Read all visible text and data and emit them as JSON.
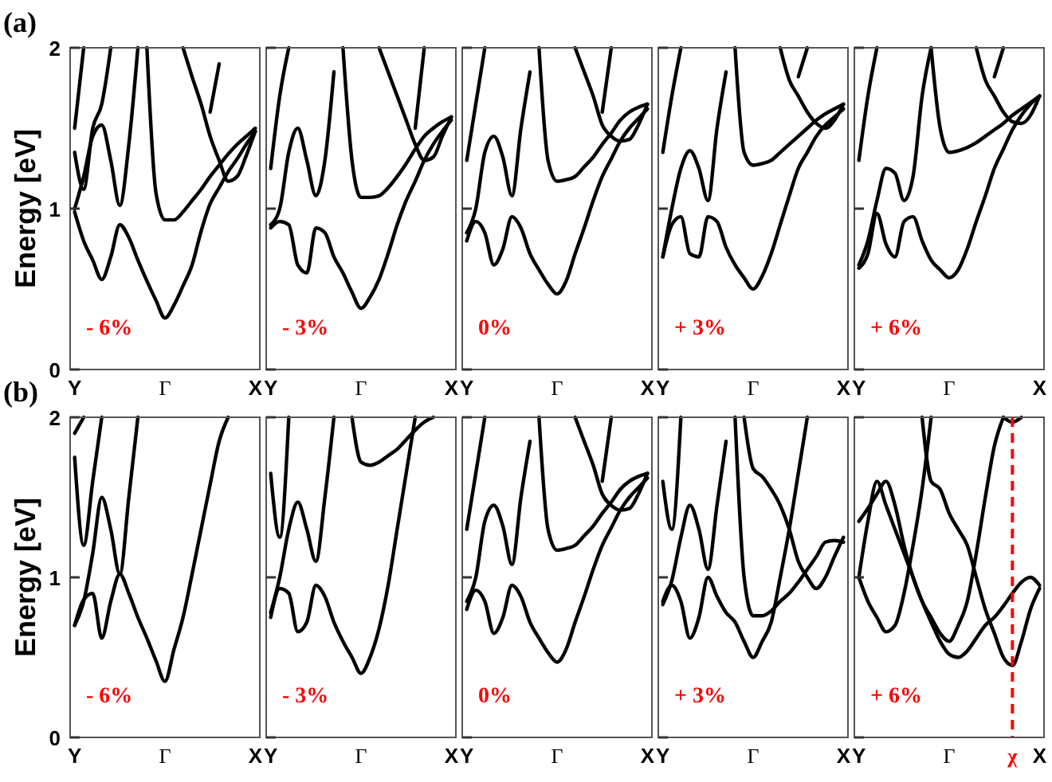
{
  "chart_data": [
    {
      "type": "line",
      "ylabel": "Energy [eV]",
      "annotations": [
        "(a)",
        "- 6%"
      ],
      "categories": [
        "Y",
        null,
        null,
        null,
        null,
        null,
        null,
        null,
        null,
        null,
        "Γ",
        null,
        null,
        null,
        null,
        null,
        null,
        null,
        null,
        null,
        "X"
      ],
      "ylim": [
        0,
        2
      ],
      "yticks": [
        0,
        1,
        2
      ],
      "series": [
        {
          "color": "#000000",
          "values": [
            0.98,
            0.8,
            0.68,
            0.56,
            0.7,
            0.9,
            0.82,
            0.68,
            0.55,
            0.43,
            0.32,
            0.4,
            0.52,
            0.65,
            0.86,
            1.03,
            1.13,
            1.23,
            1.31,
            1.4,
            1.48
          ]
        },
        {
          "color": "#000000",
          "values": [
            1.0,
            1.2,
            1.45,
            1.52,
            1.3,
            1.02,
            1.4,
            2.0,
            null,
            null,
            null,
            null,
            null,
            null,
            null,
            null,
            null,
            null,
            null,
            null,
            null
          ]
        },
        {
          "color": "#000000",
          "values": [
            null,
            null,
            null,
            null,
            null,
            null,
            null,
            null,
            2.0,
            1.1,
            0.93,
            0.93,
            0.98,
            1.05,
            1.12,
            1.2,
            1.27,
            1.34,
            1.4,
            1.45,
            1.5
          ]
        },
        {
          "color": "#000000",
          "values": [
            null,
            null,
            null,
            null,
            null,
            null,
            null,
            null,
            null,
            null,
            null,
            null,
            2.0,
            1.82,
            1.65,
            1.45,
            1.3,
            1.17,
            1.2,
            1.33,
            1.48
          ]
        },
        {
          "color": "#000000",
          "values": [
            null,
            null,
            null,
            null,
            null,
            null,
            null,
            null,
            null,
            null,
            null,
            null,
            null,
            null,
            null,
            1.6,
            1.9,
            null,
            null,
            null,
            null
          ]
        },
        {
          "color": "#000000",
          "values": [
            1.35,
            1.12,
            1.5,
            1.65,
            2.0,
            null,
            null,
            null,
            null,
            null,
            null,
            null,
            null,
            null,
            null,
            null,
            null,
            null,
            null,
            null,
            null
          ]
        },
        {
          "color": "#000000",
          "values": [
            1.5,
            2.0,
            null,
            null,
            null,
            null,
            null,
            null,
            null,
            null,
            null,
            null,
            null,
            null,
            null,
            null,
            null,
            null,
            null,
            null,
            null
          ]
        }
      ]
    },
    {
      "type": "line",
      "annotations": [
        "- 3%"
      ],
      "tick_labels": "x",
      "categories": [
        "Y",
        null,
        null,
        null,
        null,
        null,
        null,
        null,
        null,
        null,
        "Γ",
        null,
        null,
        null,
        null,
        null,
        null,
        null,
        null,
        null,
        "X"
      ],
      "ylim": [
        0,
        2
      ],
      "yticks": [
        0,
        1,
        2
      ],
      "series": [
        {
          "color": "#000000",
          "values": [
            0.88,
            0.92,
            0.9,
            0.65,
            0.6,
            0.88,
            0.85,
            0.7,
            0.6,
            0.48,
            0.38,
            0.45,
            0.56,
            0.72,
            0.9,
            1.05,
            1.17,
            1.3,
            1.4,
            1.48,
            1.55
          ]
        },
        {
          "color": "#000000",
          "values": [
            0.9,
            1.0,
            1.35,
            1.5,
            1.3,
            1.08,
            1.3,
            1.85,
            null,
            null,
            null,
            null,
            null,
            null,
            null,
            null,
            null,
            null,
            null,
            null,
            null
          ]
        },
        {
          "color": "#000000",
          "values": [
            null,
            null,
            null,
            null,
            null,
            null,
            null,
            null,
            2.0,
            1.3,
            1.07,
            1.07,
            1.08,
            1.13,
            1.2,
            1.28,
            1.37,
            1.45,
            1.5,
            1.54,
            1.57
          ]
        },
        {
          "color": "#000000",
          "values": [
            null,
            null,
            null,
            null,
            null,
            null,
            null,
            null,
            null,
            null,
            null,
            null,
            2.0,
            1.85,
            1.7,
            1.55,
            1.4,
            1.3,
            1.32,
            1.45,
            1.57
          ]
        },
        {
          "color": "#000000",
          "values": [
            null,
            null,
            null,
            null,
            null,
            null,
            null,
            null,
            null,
            null,
            null,
            null,
            null,
            null,
            null,
            null,
            1.5,
            2.0,
            null,
            null,
            null
          ]
        },
        {
          "color": "#000000",
          "values": [
            1.25,
            1.7,
            2.0,
            null,
            null,
            null,
            null,
            null,
            null,
            null,
            null,
            null,
            null,
            null,
            null,
            null,
            null,
            null,
            null,
            null,
            null
          ]
        }
      ]
    },
    {
      "type": "line",
      "annotations": [
        "0%"
      ],
      "tick_labels": "x",
      "categories": [
        "Y",
        null,
        null,
        null,
        null,
        null,
        null,
        null,
        null,
        null,
        "Γ",
        null,
        null,
        null,
        null,
        null,
        null,
        null,
        null,
        null,
        "X"
      ],
      "ylim": [
        0,
        2
      ],
      "yticks": [
        0,
        1,
        2
      ],
      "series": [
        {
          "color": "#000000",
          "values": [
            0.8,
            0.92,
            0.85,
            0.65,
            0.75,
            0.95,
            0.88,
            0.72,
            0.62,
            0.53,
            0.47,
            0.55,
            0.72,
            0.88,
            1.05,
            1.2,
            1.31,
            1.42,
            1.5,
            1.56,
            1.62
          ]
        },
        {
          "color": "#000000",
          "values": [
            0.85,
            1.0,
            1.35,
            1.45,
            1.32,
            1.08,
            1.5,
            1.85,
            null,
            null,
            null,
            null,
            null,
            null,
            null,
            null,
            null,
            null,
            null,
            null,
            null
          ]
        },
        {
          "color": "#000000",
          "values": [
            null,
            null,
            null,
            null,
            null,
            null,
            null,
            null,
            2.0,
            1.3,
            1.17,
            1.18,
            1.2,
            1.26,
            1.32,
            1.4,
            1.47,
            1.55,
            1.6,
            1.63,
            1.65
          ]
        },
        {
          "color": "#000000",
          "values": [
            null,
            null,
            null,
            null,
            null,
            null,
            null,
            null,
            null,
            null,
            null,
            null,
            2.0,
            1.85,
            1.7,
            1.52,
            1.45,
            1.42,
            1.43,
            1.52,
            1.65
          ]
        },
        {
          "color": "#000000",
          "values": [
            null,
            null,
            null,
            null,
            null,
            null,
            null,
            null,
            null,
            null,
            null,
            null,
            null,
            null,
            null,
            1.6,
            2.0,
            null,
            null,
            null,
            null
          ]
        },
        {
          "color": "#000000",
          "values": [
            1.3,
            1.65,
            2.0,
            null,
            null,
            null,
            null,
            null,
            null,
            null,
            null,
            null,
            null,
            null,
            null,
            null,
            null,
            null,
            null,
            null,
            null
          ]
        }
      ]
    },
    {
      "type": "line",
      "annotations": [
        "+ 3%"
      ],
      "tick_labels": "x",
      "categories": [
        "Y",
        null,
        null,
        null,
        null,
        null,
        null,
        null,
        null,
        null,
        "Γ",
        null,
        null,
        null,
        null,
        null,
        null,
        null,
        null,
        null,
        "X"
      ],
      "ylim": [
        0,
        2
      ],
      "yticks": [
        0,
        1,
        2
      ],
      "series": [
        {
          "color": "#000000",
          "values": [
            0.7,
            0.9,
            0.95,
            0.72,
            0.7,
            0.95,
            0.92,
            0.76,
            0.65,
            0.57,
            0.5,
            0.58,
            0.72,
            0.9,
            1.08,
            1.25,
            1.35,
            1.45,
            1.52,
            1.57,
            1.62
          ]
        },
        {
          "color": "#000000",
          "values": [
            0.7,
            1.0,
            1.25,
            1.36,
            1.25,
            1.05,
            1.5,
            1.85,
            null,
            null,
            null,
            null,
            null,
            null,
            null,
            null,
            null,
            null,
            null,
            null,
            null
          ]
        },
        {
          "color": "#000000",
          "values": [
            null,
            null,
            null,
            null,
            null,
            null,
            null,
            null,
            2.0,
            1.35,
            1.27,
            1.28,
            1.3,
            1.35,
            1.4,
            1.45,
            1.5,
            1.55,
            1.59,
            1.62,
            1.65
          ]
        },
        {
          "color": "#000000",
          "values": [
            null,
            null,
            null,
            null,
            null,
            null,
            null,
            null,
            null,
            null,
            null,
            null,
            null,
            2.0,
            1.8,
            1.7,
            1.6,
            1.53,
            1.5,
            1.55,
            1.65
          ]
        },
        {
          "color": "#000000",
          "values": [
            null,
            null,
            null,
            null,
            null,
            null,
            null,
            null,
            null,
            null,
            null,
            null,
            null,
            null,
            null,
            1.82,
            2.0,
            null,
            null,
            null,
            null
          ]
        },
        {
          "color": "#000000",
          "values": [
            1.35,
            1.7,
            2.0,
            null,
            null,
            null,
            null,
            null,
            null,
            null,
            null,
            null,
            null,
            null,
            null,
            null,
            null,
            null,
            null,
            null,
            null
          ]
        }
      ]
    },
    {
      "type": "line",
      "annotations": [
        "+ 6%"
      ],
      "tick_labels": "x",
      "categories": [
        "Y",
        null,
        null,
        null,
        null,
        null,
        null,
        null,
        null,
        null,
        "Γ",
        null,
        null,
        null,
        null,
        null,
        null,
        null,
        null,
        null,
        "X"
      ],
      "ylim": [
        0,
        2
      ],
      "yticks": [
        0,
        1,
        2
      ],
      "series": [
        {
          "color": "#000000",
          "values": [
            0.63,
            0.72,
            0.97,
            0.78,
            0.7,
            0.92,
            0.95,
            0.8,
            0.68,
            0.62,
            0.57,
            0.62,
            0.75,
            0.92,
            1.08,
            1.25,
            1.37,
            1.49,
            1.58,
            1.65,
            1.7
          ]
        },
        {
          "color": "#000000",
          "values": [
            0.65,
            0.8,
            1.05,
            1.25,
            1.22,
            1.05,
            1.2,
            1.7,
            2.0,
            null,
            null,
            null,
            null,
            null,
            null,
            null,
            null,
            null,
            null,
            null,
            null
          ]
        },
        {
          "color": "#000000",
          "values": [
            null,
            null,
            null,
            null,
            null,
            null,
            null,
            null,
            2.0,
            1.5,
            1.35,
            1.36,
            1.38,
            1.41,
            1.45,
            1.49,
            1.53,
            1.58,
            1.62,
            1.66,
            1.7
          ]
        },
        {
          "color": "#000000",
          "values": [
            null,
            null,
            null,
            null,
            null,
            null,
            null,
            null,
            null,
            null,
            null,
            null,
            null,
            2.0,
            1.8,
            1.7,
            1.6,
            1.54,
            1.53,
            1.58,
            1.7
          ]
        },
        {
          "color": "#000000",
          "values": [
            null,
            null,
            null,
            null,
            null,
            null,
            null,
            null,
            null,
            null,
            null,
            null,
            null,
            null,
            null,
            1.82,
            2.0,
            null,
            null,
            null,
            null
          ]
        },
        {
          "color": "#000000",
          "values": [
            1.3,
            1.7,
            2.0,
            null,
            null,
            null,
            null,
            null,
            null,
            null,
            null,
            null,
            null,
            null,
            null,
            null,
            null,
            null,
            null,
            null,
            null
          ]
        }
      ]
    },
    {
      "type": "line",
      "ylabel": "Energy [eV]",
      "annotations": [
        "(b)",
        "- 6%"
      ],
      "categories": [
        "Y",
        null,
        null,
        null,
        null,
        null,
        null,
        null,
        null,
        null,
        "Γ",
        null,
        null,
        null,
        null,
        null,
        null,
        null,
        null,
        null,
        "X"
      ],
      "ylim": [
        0,
        2
      ],
      "yticks": [
        0,
        1,
        2
      ],
      "series": [
        {
          "color": "#000000",
          "values": [
            0.7,
            0.86,
            0.9,
            0.62,
            0.85,
            1.02,
            0.9,
            0.75,
            0.62,
            0.48,
            0.35,
            0.55,
            0.75,
            1.02,
            1.3,
            1.58,
            1.85,
            2.0,
            null,
            null,
            null
          ]
        },
        {
          "color": "#000000",
          "values": [
            0.7,
            0.85,
            1.15,
            1.5,
            1.3,
            1.02,
            1.5,
            2.0,
            null,
            null,
            null,
            null,
            null,
            null,
            null,
            null,
            null,
            null,
            null,
            null,
            null
          ]
        },
        {
          "color": "#000000",
          "values": [
            1.75,
            1.2,
            1.6,
            2.0,
            null,
            null,
            null,
            null,
            null,
            null,
            null,
            null,
            null,
            null,
            null,
            null,
            null,
            null,
            null,
            null,
            null
          ]
        },
        {
          "color": "#000000",
          "values": [
            1.9,
            2.0,
            null,
            null,
            null,
            null,
            null,
            null,
            null,
            null,
            null,
            null,
            null,
            null,
            null,
            null,
            null,
            null,
            null,
            null,
            null
          ]
        }
      ]
    },
    {
      "type": "line",
      "annotations": [
        "- 3%"
      ],
      "tick_labels": "x",
      "categories": [
        "Y",
        null,
        null,
        null,
        null,
        null,
        null,
        null,
        null,
        null,
        "Γ",
        null,
        null,
        null,
        null,
        null,
        null,
        null,
        null,
        null,
        "X"
      ],
      "ylim": [
        0,
        2
      ],
      "yticks": [
        0,
        1,
        2
      ],
      "series": [
        {
          "color": "#000000",
          "values": [
            0.75,
            0.93,
            0.9,
            0.66,
            0.72,
            0.95,
            0.88,
            0.72,
            0.6,
            0.5,
            0.4,
            0.5,
            0.68,
            0.95,
            1.3,
            1.65,
            2.0,
            null,
            null,
            null,
            null
          ]
        },
        {
          "color": "#000000",
          "values": [
            0.78,
            1.0,
            1.3,
            1.47,
            1.3,
            1.1,
            1.5,
            2.0,
            null,
            null,
            null,
            null,
            null,
            null,
            null,
            null,
            null,
            null,
            null,
            null,
            null
          ]
        },
        {
          "color": "#000000",
          "values": [
            null,
            null,
            null,
            null,
            null,
            null,
            null,
            null,
            null,
            2.0,
            1.72,
            1.7,
            1.72,
            1.76,
            1.8,
            1.86,
            1.92,
            1.97,
            2.0,
            null,
            null
          ]
        },
        {
          "color": "#000000",
          "values": [
            1.65,
            1.25,
            2.0,
            null,
            null,
            null,
            null,
            null,
            null,
            null,
            null,
            null,
            null,
            null,
            null,
            null,
            null,
            null,
            null,
            null,
            null
          ]
        }
      ]
    },
    {
      "type": "line",
      "annotations": [
        "0%"
      ],
      "tick_labels": "x",
      "categories": [
        "Y",
        null,
        null,
        null,
        null,
        null,
        null,
        null,
        null,
        null,
        "Γ",
        null,
        null,
        null,
        null,
        null,
        null,
        null,
        null,
        null,
        "X"
      ],
      "ylim": [
        0,
        2
      ],
      "yticks": [
        0,
        1,
        2
      ],
      "series": [
        {
          "color": "#000000",
          "values": [
            0.8,
            0.92,
            0.85,
            0.65,
            0.75,
            0.95,
            0.88,
            0.72,
            0.62,
            0.53,
            0.47,
            0.55,
            0.72,
            0.88,
            1.05,
            1.2,
            1.31,
            1.42,
            1.5,
            1.56,
            1.62
          ]
        },
        {
          "color": "#000000",
          "values": [
            0.85,
            1.0,
            1.35,
            1.45,
            1.32,
            1.08,
            1.5,
            1.85,
            null,
            null,
            null,
            null,
            null,
            null,
            null,
            null,
            null,
            null,
            null,
            null,
            null
          ]
        },
        {
          "color": "#000000",
          "values": [
            null,
            null,
            null,
            null,
            null,
            null,
            null,
            null,
            2.0,
            1.3,
            1.17,
            1.18,
            1.2,
            1.26,
            1.32,
            1.4,
            1.47,
            1.55,
            1.6,
            1.63,
            1.65
          ]
        },
        {
          "color": "#000000",
          "values": [
            null,
            null,
            null,
            null,
            null,
            null,
            null,
            null,
            null,
            null,
            null,
            null,
            2.0,
            1.85,
            1.7,
            1.52,
            1.45,
            1.42,
            1.43,
            1.52,
            1.65
          ]
        },
        {
          "color": "#000000",
          "values": [
            null,
            null,
            null,
            null,
            null,
            null,
            null,
            null,
            null,
            null,
            null,
            null,
            null,
            null,
            null,
            1.6,
            2.0,
            null,
            null,
            null,
            null
          ]
        },
        {
          "color": "#000000",
          "values": [
            1.3,
            1.65,
            2.0,
            null,
            null,
            null,
            null,
            null,
            null,
            null,
            null,
            null,
            null,
            null,
            null,
            null,
            null,
            null,
            null,
            null,
            null
          ]
        }
      ]
    },
    {
      "type": "line",
      "annotations": [
        "+ 3%"
      ],
      "tick_labels": "x",
      "categories": [
        "Y",
        null,
        null,
        null,
        null,
        null,
        null,
        null,
        null,
        null,
        "Γ",
        null,
        null,
        null,
        null,
        null,
        null,
        null,
        null,
        null,
        "X"
      ],
      "ylim": [
        0,
        2
      ],
      "yticks": [
        0,
        1,
        2
      ],
      "series": [
        {
          "color": "#000000",
          "values": [
            0.85,
            0.95,
            0.85,
            0.62,
            0.75,
            1.0,
            0.88,
            0.78,
            0.72,
            0.6,
            0.5,
            0.6,
            0.72,
            1.0,
            1.3,
            1.65,
            2.0,
            null,
            null,
            null,
            null
          ]
        },
        {
          "color": "#000000",
          "values": [
            0.83,
            0.98,
            1.25,
            1.45,
            1.3,
            1.05,
            1.45,
            1.85,
            null,
            null,
            null,
            null,
            null,
            null,
            null,
            null,
            null,
            null,
            null,
            null,
            null
          ]
        },
        {
          "color": "#000000",
          "values": [
            null,
            null,
            null,
            null,
            null,
            null,
            null,
            null,
            2.0,
            1.0,
            0.76,
            0.76,
            0.79,
            0.85,
            0.9,
            0.97,
            1.05,
            1.13,
            1.22,
            1.23,
            1.22
          ]
        },
        {
          "color": "#000000",
          "values": [
            null,
            null,
            null,
            null,
            null,
            null,
            null,
            null,
            null,
            2.0,
            1.68,
            1.63,
            1.55,
            1.45,
            1.3,
            1.1,
            1.0,
            0.93,
            1.0,
            1.13,
            1.25
          ]
        },
        {
          "color": "#000000",
          "values": [
            1.6,
            1.3,
            2.0,
            null,
            null,
            null,
            null,
            null,
            null,
            null,
            null,
            null,
            null,
            null,
            null,
            null,
            null,
            null,
            null,
            null,
            null
          ]
        }
      ]
    },
    {
      "type": "line",
      "annotations": [
        "+ 6%"
      ],
      "tick_labels": "x",
      "categories": [
        "Y",
        null,
        null,
        null,
        null,
        null,
        null,
        null,
        null,
        null,
        "Γ",
        null,
        null,
        null,
        null,
        null,
        null,
        "χ",
        null,
        null,
        "X"
      ],
      "ylim": [
        0,
        2
      ],
      "yticks": [
        0,
        1,
        2
      ],
      "ref_lines": [
        {
          "axis": "x",
          "value": "χ",
          "color": "#ff0000",
          "line_style": "dashed"
        }
      ],
      "series": [
        {
          "color": "#000000",
          "values": [
            1.0,
            0.85,
            0.75,
            0.66,
            0.7,
            0.9,
            1.2,
            1.55,
            2.0,
            null,
            null,
            null,
            null,
            null,
            null,
            null,
            null,
            null,
            null,
            null,
            null
          ]
        },
        {
          "color": "#000000",
          "values": [
            1.35,
            1.43,
            1.52,
            1.6,
            1.45,
            1.2,
            1.0,
            0.85,
            0.75,
            0.65,
            0.6,
            0.7,
            0.85,
            1.15,
            1.5,
            1.82,
            2.0,
            null,
            null,
            null,
            null
          ]
        },
        {
          "color": "#000000",
          "values": [
            1.0,
            1.35,
            1.6,
            1.45,
            1.3,
            1.15,
            1.0,
            0.85,
            0.72,
            0.6,
            0.52,
            0.5,
            0.54,
            0.62,
            0.7,
            0.75,
            0.82,
            0.9,
            0.97,
            1.0,
            0.95
          ]
        },
        {
          "color": "#000000",
          "values": [
            null,
            null,
            null,
            null,
            null,
            null,
            null,
            2.0,
            1.6,
            1.55,
            1.4,
            1.3,
            1.2,
            1.0,
            0.8,
            0.65,
            0.5,
            0.45,
            0.6,
            0.8,
            0.93
          ]
        },
        {
          "color": "#000000",
          "values": [
            null,
            null,
            null,
            null,
            null,
            null,
            null,
            null,
            null,
            null,
            null,
            null,
            null,
            null,
            null,
            null,
            2.0,
            1.97,
            2.0,
            null,
            null
          ]
        }
      ]
    }
  ]
}
